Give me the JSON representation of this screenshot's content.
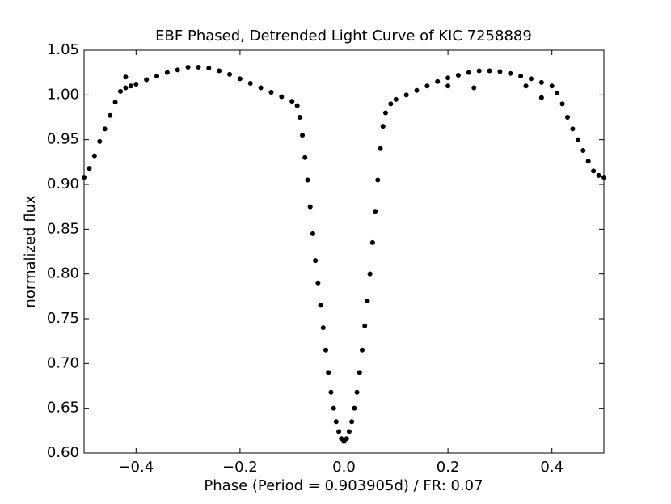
{
  "chart_data": {
    "type": "scatter",
    "title": "EBF Phased, Detrended Light Curve of KIC 7258889",
    "x_label": "Phase (Period = 0.903905d) / FR: 0.07",
    "y_label": "normalized flux",
    "xlim": [
      -0.5,
      0.5
    ],
    "ylim": [
      0.6,
      1.05
    ],
    "xticks": [
      {
        "value": -0.4,
        "label": "−0.4"
      },
      {
        "value": -0.2,
        "label": "−0.2"
      },
      {
        "value": 0,
        "label": "0.0"
      },
      0.2,
      0.4
    ],
    "yticks": [
      {
        "value": 0.6,
        "label": "0.60"
      },
      0.65,
      {
        "value": 0.7,
        "label": "0.70"
      },
      0.75,
      {
        "value": 0.8,
        "label": "0.80"
      },
      0.85,
      {
        "value": 0.9,
        "label": "0.90"
      },
      0.95,
      {
        "value": 1.0,
        "label": "1.00"
      },
      1.05
    ],
    "color": "#000000",
    "grid": false,
    "x": [
      -0.5,
      -0.49,
      -0.48,
      -0.47,
      -0.46,
      -0.45,
      -0.44,
      -0.43,
      -0.42,
      -0.41,
      -0.4,
      -0.38,
      -0.36,
      -0.34,
      -0.32,
      -0.3,
      -0.28,
      -0.26,
      -0.24,
      -0.22,
      -0.2,
      -0.18,
      -0.16,
      -0.14,
      -0.12,
      -0.1,
      -0.09,
      -0.085,
      -0.08,
      -0.075,
      -0.07,
      -0.065,
      -0.06,
      -0.055,
      -0.05,
      -0.045,
      -0.04,
      -0.035,
      -0.03,
      -0.025,
      -0.02,
      -0.015,
      -0.01,
      -0.005,
      0,
      0.005,
      0.01,
      0.015,
      0.02,
      0.025,
      0.03,
      0.035,
      0.04,
      0.045,
      0.05,
      0.055,
      0.06,
      0.065,
      0.07,
      0.075,
      0.08,
      0.09,
      0.1,
      0.12,
      0.14,
      0.16,
      0.18,
      0.2,
      0.22,
      0.24,
      0.26,
      0.28,
      0.3,
      0.32,
      0.34,
      0.36,
      0.38,
      0.4,
      0.41,
      0.42,
      0.43,
      0.44,
      0.45,
      0.46,
      0.47,
      0.48,
      0.49,
      0.5,
      -0.42,
      0.2,
      0.25,
      0.35,
      0.38
    ],
    "y": [
      0.908,
      0.918,
      0.932,
      0.948,
      0.962,
      0.977,
      0.992,
      1.004,
      1.008,
      1.01,
      1.012,
      1.017,
      1.021,
      1.025,
      1.028,
      1.031,
      1.031,
      1.03,
      1.027,
      1.023,
      1.018,
      1.013,
      1.008,
      1.003,
      0.998,
      0.993,
      0.988,
      0.975,
      0.955,
      0.93,
      0.905,
      0.875,
      0.845,
      0.815,
      0.79,
      0.765,
      0.74,
      0.715,
      0.69,
      0.668,
      0.65,
      0.635,
      0.624,
      0.616,
      0.613,
      0.616,
      0.624,
      0.635,
      0.65,
      0.668,
      0.69,
      0.715,
      0.742,
      0.77,
      0.8,
      0.835,
      0.87,
      0.905,
      0.94,
      0.965,
      0.98,
      0.99,
      0.995,
      1.0,
      1.005,
      1.01,
      1.015,
      1.019,
      1.022,
      1.025,
      1.027,
      1.027,
      1.026,
      1.024,
      1.021,
      1.018,
      1.014,
      1.01,
      1.002,
      0.99,
      0.975,
      0.962,
      0.95,
      0.938,
      0.926,
      0.915,
      0.91,
      0.908,
      1.02,
      1.01,
      1.008,
      1.01,
      0.997
    ]
  }
}
